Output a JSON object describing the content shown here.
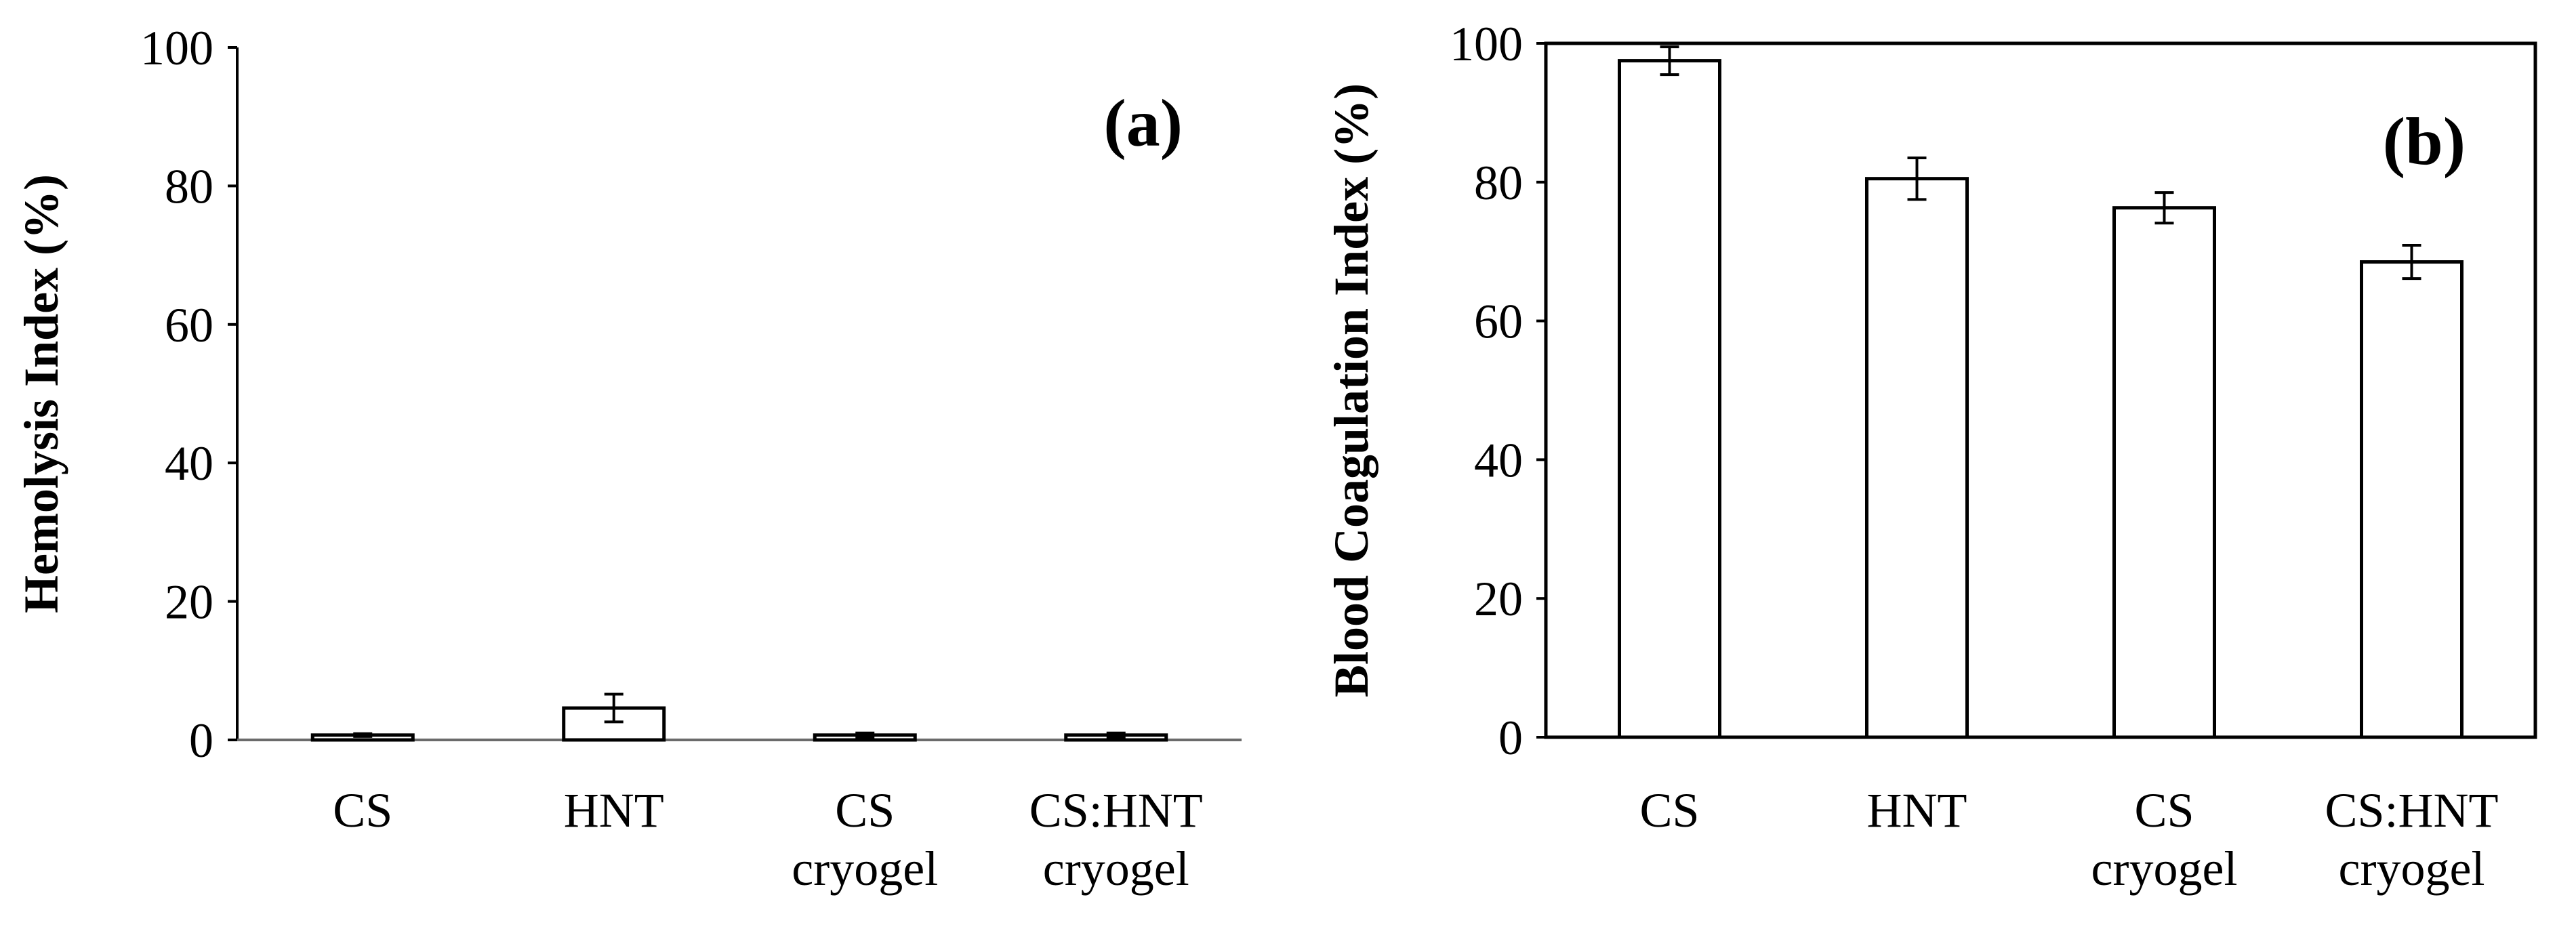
{
  "chart_data": [
    {
      "type": "bar",
      "panel_label": "(a)",
      "title": "",
      "xlabel": "",
      "ylabel": "Hemolysis Index (%)",
      "categories": [
        [
          "CS"
        ],
        [
          "HNT"
        ],
        [
          "CS",
          "cryogel"
        ],
        [
          "CS:HNT",
          "cryogel"
        ]
      ],
      "values": [
        0.7,
        4.6,
        0.7,
        0.7
      ],
      "errors": [
        0.2,
        2.0,
        0.3,
        0.3
      ],
      "ylim": [
        0,
        100
      ],
      "yticks": [
        0,
        20,
        40,
        60,
        80,
        100
      ],
      "grid": false,
      "legend": "none",
      "bar_fill": "#ffffff",
      "bar_stroke": "#000000"
    },
    {
      "type": "bar",
      "panel_label": "(b)",
      "title": "",
      "xlabel": "",
      "ylabel": "Blood Coagulation Index (%)",
      "categories": [
        [
          "CS"
        ],
        [
          "HNT"
        ],
        [
          "CS",
          "cryogel"
        ],
        [
          "CS:HNT",
          "cryogel"
        ]
      ],
      "values": [
        97.5,
        80.5,
        76.3,
        68.5
      ],
      "errors": [
        2.0,
        3.0,
        2.2,
        2.4
      ],
      "ylim": [
        0,
        100
      ],
      "yticks": [
        0,
        20,
        40,
        60,
        80,
        100
      ],
      "grid": false,
      "legend": "none",
      "bar_fill": "#ffffff",
      "bar_stroke": "#000000"
    }
  ]
}
